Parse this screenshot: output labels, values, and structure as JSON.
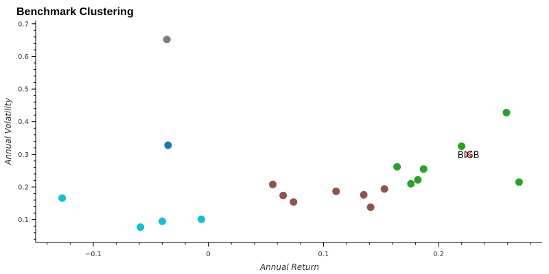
{
  "chart_data": {
    "type": "scatter",
    "title": "Benchmark Clustering",
    "xlabel": "Annual Return",
    "ylabel": "Annual Volatility",
    "xlim": [
      -0.15,
      0.29
    ],
    "ylim": [
      0.03,
      0.71
    ],
    "x_ticks": [
      -0.1,
      0,
      0.1,
      0.2
    ],
    "x_tick_labels": [
      "−0.1",
      "0",
      "0.1",
      "0.2"
    ],
    "y_ticks": [
      0.1,
      0.2,
      0.3,
      0.4,
      0.5,
      0.6,
      0.7
    ],
    "y_tick_labels": [
      "0.1",
      "0.2",
      "0.3",
      "0.4",
      "0.5",
      "0.6",
      "0.7"
    ],
    "grid": false,
    "legend": "none",
    "colors": {
      "cyan": "#17becf",
      "gray": "#7f7f7f",
      "blue": "#1f77b4",
      "brown": "#8c564b",
      "green": "#2ca02c",
      "marker": "#d62728"
    },
    "series": [
      {
        "color": "#17becf",
        "points": [
          [
            -0.127,
            0.166
          ],
          [
            -0.059,
            0.077
          ],
          [
            -0.04,
            0.095
          ],
          [
            -0.006,
            0.101
          ]
        ]
      },
      {
        "color": "#7f7f7f",
        "points": [
          [
            -0.036,
            0.652
          ]
        ]
      },
      {
        "color": "#1f77b4",
        "points": [
          [
            -0.035,
            0.328
          ]
        ]
      },
      {
        "color": "#8c564b",
        "points": [
          [
            0.056,
            0.208
          ],
          [
            0.065,
            0.174
          ],
          [
            0.074,
            0.154
          ],
          [
            0.111,
            0.187
          ],
          [
            0.135,
            0.176
          ],
          [
            0.141,
            0.138
          ],
          [
            0.153,
            0.194
          ]
        ]
      },
      {
        "color": "#2ca02c",
        "points": [
          [
            0.164,
            0.262
          ],
          [
            0.176,
            0.21
          ],
          [
            0.182,
            0.222
          ],
          [
            0.187,
            0.255
          ],
          [
            0.22,
            0.325
          ],
          [
            0.259,
            0.428
          ],
          [
            0.27,
            0.215
          ]
        ]
      }
    ],
    "annotations": [
      {
        "text": "BIGB",
        "x": 0.226,
        "y": 0.3,
        "marker": "x",
        "color": "#d62728"
      }
    ]
  }
}
